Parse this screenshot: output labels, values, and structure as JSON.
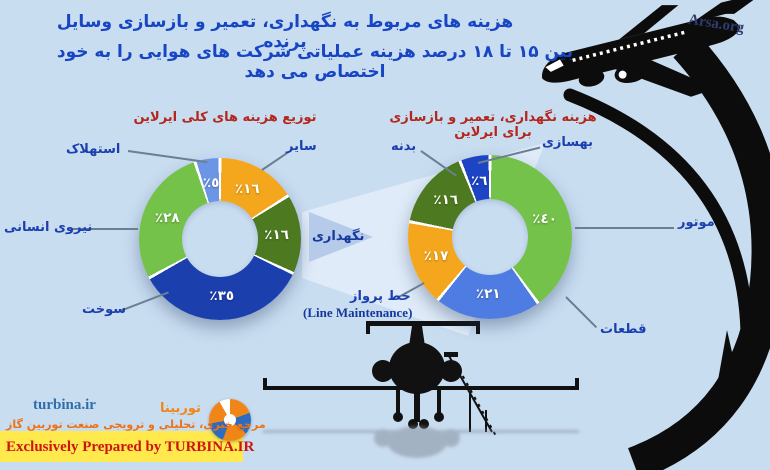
{
  "header": {
    "title_line1": "هزینه های مربوط به نگهداری، تعمیر و بازسازی وسایل پرنده",
    "title_line2": "بین ۱۵ تا ۱۸ درصد هزینه عملیاتی شرکت های هوایی را به خود اختصاص می دهد",
    "brand": "Arsa.org"
  },
  "chart_data": [
    {
      "type": "pie",
      "subtype": "donut",
      "title": "توزیع هزینه های کلی ایرلاین",
      "categories": [
        "سایر",
        "نگهداری",
        "سوخت",
        "نیروی انسانی",
        "استهلاک"
      ],
      "values": [
        16,
        16,
        35,
        28,
        5
      ],
      "value_labels": [
        "٪١٦",
        "٪١٦",
        "٪٣٥",
        "٪٢٨",
        "٪٥"
      ],
      "colors": [
        "#f4a71d",
        "#4d7a20",
        "#1c3fae",
        "#74c24a",
        "#6d95e6"
      ],
      "unit": "%",
      "start_angle": "12-oclock",
      "direction": "clockwise"
    },
    {
      "type": "pie",
      "subtype": "donut",
      "title": "هزینه نگهداری، تعمیر و بازسازی برای ایرلاین",
      "categories": [
        "موتور",
        "قطعات",
        "خط پرواز",
        "بدنه",
        "بهسازی"
      ],
      "values": [
        40,
        21,
        17,
        16,
        6
      ],
      "value_labels": [
        "٪٤٠",
        "٪٢١",
        "٪١٧",
        "٪١٦",
        "٪٦"
      ],
      "colors": [
        "#74c24a",
        "#4e7ce2",
        "#f4a71d",
        "#4d7a20",
        "#1c44c4"
      ],
      "latin_note": "(Line Maintenance)",
      "unit": "%",
      "start_angle": "12-oclock",
      "direction": "clockwise"
    }
  ],
  "connector": {
    "label": "نگهداری"
  },
  "footer": {
    "site": "turbina.ir",
    "brand_fa": "توربینا",
    "tagline": "مرجع خبری، تحلیلی و ترویجی صنعت توربین گاز",
    "credit": "Exclusively Prepared by TURBINA.IR"
  },
  "colors": {
    "background": "#c9ddf1",
    "title_blue": "#1745c4",
    "heading_red": "#b3271d",
    "label_blue": "#1b3fae",
    "accent_yellow": "#ffe94d",
    "credit_red": "#cf1310"
  }
}
